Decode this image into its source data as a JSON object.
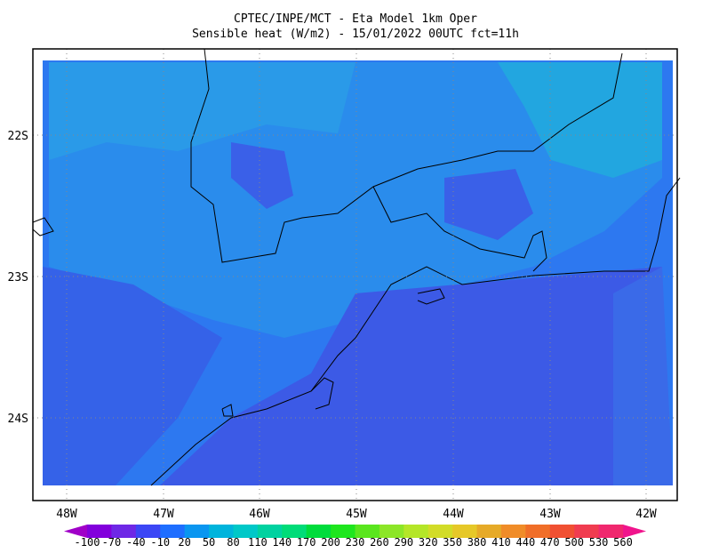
{
  "title": {
    "line1": "CPTEC/INPE/MCT -  Eta Model 1km Oper",
    "line2": "Sensible heat (W/m2) - 15/01/2022 00UTC fct=11h"
  },
  "map": {
    "lat_labels": [
      "22S",
      "23S",
      "24S"
    ],
    "lon_labels": [
      "48W",
      "47W",
      "46W",
      "45W",
      "44W",
      "43W",
      "42W"
    ]
  },
  "colorbar": {
    "labels": [
      "-100",
      "-70",
      "-40",
      "-10",
      "20",
      "50",
      "80",
      "110",
      "140",
      "170",
      "200",
      "230",
      "260",
      "290",
      "320",
      "350",
      "380",
      "410",
      "440",
      "470",
      "500",
      "530",
      "560"
    ],
    "colors": [
      "#a000c8",
      "#8200dc",
      "#6e28e6",
      "#3c46f5",
      "#1e6eff",
      "#0a96f0",
      "#00b4dc",
      "#00c8c8",
      "#00d2a0",
      "#00dc78",
      "#00dc3c",
      "#1ee61e",
      "#5ae61e",
      "#8ce628",
      "#b4e628",
      "#d2dc28",
      "#e6c828",
      "#e6aa28",
      "#f08c28",
      "#f06e28",
      "#f05032",
      "#f03c50",
      "#f0286e",
      "#f0148c"
    ]
  }
}
